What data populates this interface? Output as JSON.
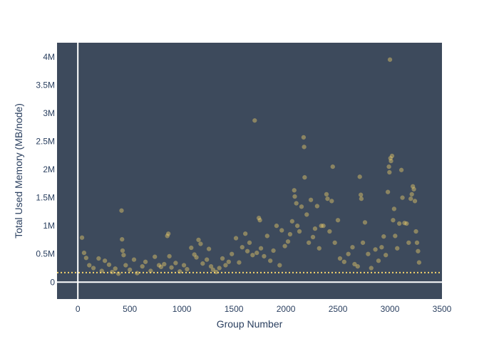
{
  "chart_data": {
    "type": "scatter",
    "title": "",
    "xlabel": "Group Number",
    "ylabel": "Total Used Memory (MB/node)",
    "xlim": [
      -200,
      3500
    ],
    "ylim": [
      -300000,
      4250000
    ],
    "grid": false,
    "plot_background": "#3d4a5c",
    "marker_color": "#f5d36b",
    "zero_line_color": "#ffffff",
    "reference_line": {
      "y": 170000,
      "style": "dotted",
      "color": "#f5d36b"
    },
    "x_ticks": [
      {
        "value": 0,
        "label": "0"
      },
      {
        "value": 500,
        "label": "500"
      },
      {
        "value": 1000,
        "label": "1000"
      },
      {
        "value": 1500,
        "label": "1500"
      },
      {
        "value": 2000,
        "label": "2000"
      },
      {
        "value": 2500,
        "label": "2500"
      },
      {
        "value": 3000,
        "label": "3000"
      },
      {
        "value": 3500,
        "label": "3500"
      }
    ],
    "y_ticks": [
      {
        "value": 0,
        "label": "0"
      },
      {
        "value": 500000,
        "label": "0.5M"
      },
      {
        "value": 1000000,
        "label": "1M"
      },
      {
        "value": 1500000,
        "label": "1.5M"
      },
      {
        "value": 2000000,
        "label": "2M"
      },
      {
        "value": 2500000,
        "label": "2.5M"
      },
      {
        "value": 3000000,
        "label": "3M"
      },
      {
        "value": 3500000,
        "label": "3.5M"
      },
      {
        "value": 4000000,
        "label": "4M"
      }
    ],
    "points": [
      [
        40,
        790000
      ],
      [
        60,
        520000
      ],
      [
        80,
        430000
      ],
      [
        110,
        300000
      ],
      [
        150,
        250000
      ],
      [
        200,
        420000
      ],
      [
        230,
        200000
      ],
      [
        260,
        380000
      ],
      [
        300,
        310000
      ],
      [
        330,
        180000
      ],
      [
        360,
        240000
      ],
      [
        390,
        150000
      ],
      [
        420,
        1270000
      ],
      [
        425,
        760000
      ],
      [
        430,
        560000
      ],
      [
        440,
        480000
      ],
      [
        460,
        300000
      ],
      [
        500,
        220000
      ],
      [
        540,
        400000
      ],
      [
        570,
        160000
      ],
      [
        620,
        280000
      ],
      [
        650,
        360000
      ],
      [
        700,
        200000
      ],
      [
        740,
        450000
      ],
      [
        780,
        300000
      ],
      [
        800,
        270000
      ],
      [
        830,
        320000
      ],
      [
        860,
        820000
      ],
      [
        870,
        860000
      ],
      [
        880,
        460000
      ],
      [
        900,
        260000
      ],
      [
        940,
        340000
      ],
      [
        980,
        190000
      ],
      [
        1020,
        300000
      ],
      [
        1050,
        230000
      ],
      [
        1090,
        610000
      ],
      [
        1120,
        490000
      ],
      [
        1140,
        440000
      ],
      [
        1160,
        750000
      ],
      [
        1180,
        680000
      ],
      [
        1200,
        330000
      ],
      [
        1240,
        400000
      ],
      [
        1260,
        590000
      ],
      [
        1280,
        280000
      ],
      [
        1300,
        220000
      ],
      [
        1330,
        180000
      ],
      [
        1360,
        250000
      ],
      [
        1390,
        420000
      ],
      [
        1420,
        300000
      ],
      [
        1450,
        360000
      ],
      [
        1480,
        500000
      ],
      [
        1520,
        780000
      ],
      [
        1550,
        350000
      ],
      [
        1580,
        620000
      ],
      [
        1610,
        860000
      ],
      [
        1630,
        550000
      ],
      [
        1650,
        700000
      ],
      [
        1680,
        480000
      ],
      [
        1700,
        2870000
      ],
      [
        1720,
        520000
      ],
      [
        1740,
        1140000
      ],
      [
        1750,
        1100000
      ],
      [
        1760,
        600000
      ],
      [
        1790,
        460000
      ],
      [
        1820,
        820000
      ],
      [
        1850,
        380000
      ],
      [
        1880,
        560000
      ],
      [
        1910,
        1000000
      ],
      [
        1940,
        300000
      ],
      [
        1960,
        920000
      ],
      [
        1990,
        640000
      ],
      [
        2020,
        720000
      ],
      [
        2040,
        850000
      ],
      [
        2060,
        1080000
      ],
      [
        2080,
        1630000
      ],
      [
        2085,
        1520000
      ],
      [
        2100,
        1400000
      ],
      [
        2110,
        1000000
      ],
      [
        2130,
        900000
      ],
      [
        2150,
        1340000
      ],
      [
        2170,
        2570000
      ],
      [
        2175,
        2400000
      ],
      [
        2180,
        1860000
      ],
      [
        2200,
        1200000
      ],
      [
        2220,
        700000
      ],
      [
        2240,
        1460000
      ],
      [
        2260,
        800000
      ],
      [
        2280,
        950000
      ],
      [
        2300,
        1350000
      ],
      [
        2320,
        600000
      ],
      [
        2340,
        1000000
      ],
      [
        2360,
        1000000
      ],
      [
        2390,
        1560000
      ],
      [
        2400,
        1480000
      ],
      [
        2420,
        900000
      ],
      [
        2440,
        1440000
      ],
      [
        2450,
        2050000
      ],
      [
        2470,
        700000
      ],
      [
        2500,
        1100000
      ],
      [
        2520,
        420000
      ],
      [
        2560,
        360000
      ],
      [
        2600,
        500000
      ],
      [
        2640,
        620000
      ],
      [
        2660,
        320000
      ],
      [
        2690,
        280000
      ],
      [
        2710,
        1870000
      ],
      [
        2720,
        1550000
      ],
      [
        2725,
        1480000
      ],
      [
        2740,
        700000
      ],
      [
        2760,
        1060000
      ],
      [
        2790,
        500000
      ],
      [
        2820,
        250000
      ],
      [
        2860,
        580000
      ],
      [
        2890,
        380000
      ],
      [
        2920,
        620000
      ],
      [
        2940,
        810000
      ],
      [
        2960,
        480000
      ],
      [
        2980,
        1600000
      ],
      [
        2990,
        2050000
      ],
      [
        2995,
        1950000
      ],
      [
        3000,
        3950000
      ],
      [
        3005,
        2200000
      ],
      [
        3010,
        2150000
      ],
      [
        3020,
        2240000
      ],
      [
        3030,
        1100000
      ],
      [
        3040,
        1300000
      ],
      [
        3050,
        820000
      ],
      [
        3070,
        600000
      ],
      [
        3090,
        1040000
      ],
      [
        3110,
        1990000
      ],
      [
        3120,
        1500000
      ],
      [
        3140,
        1050000
      ],
      [
        3160,
        1040000
      ],
      [
        3180,
        700000
      ],
      [
        3200,
        1480000
      ],
      [
        3210,
        1560000
      ],
      [
        3220,
        1700000
      ],
      [
        3230,
        1650000
      ],
      [
        3240,
        1440000
      ],
      [
        3250,
        900000
      ],
      [
        3260,
        700000
      ],
      [
        3270,
        550000
      ],
      [
        3280,
        350000
      ]
    ]
  }
}
